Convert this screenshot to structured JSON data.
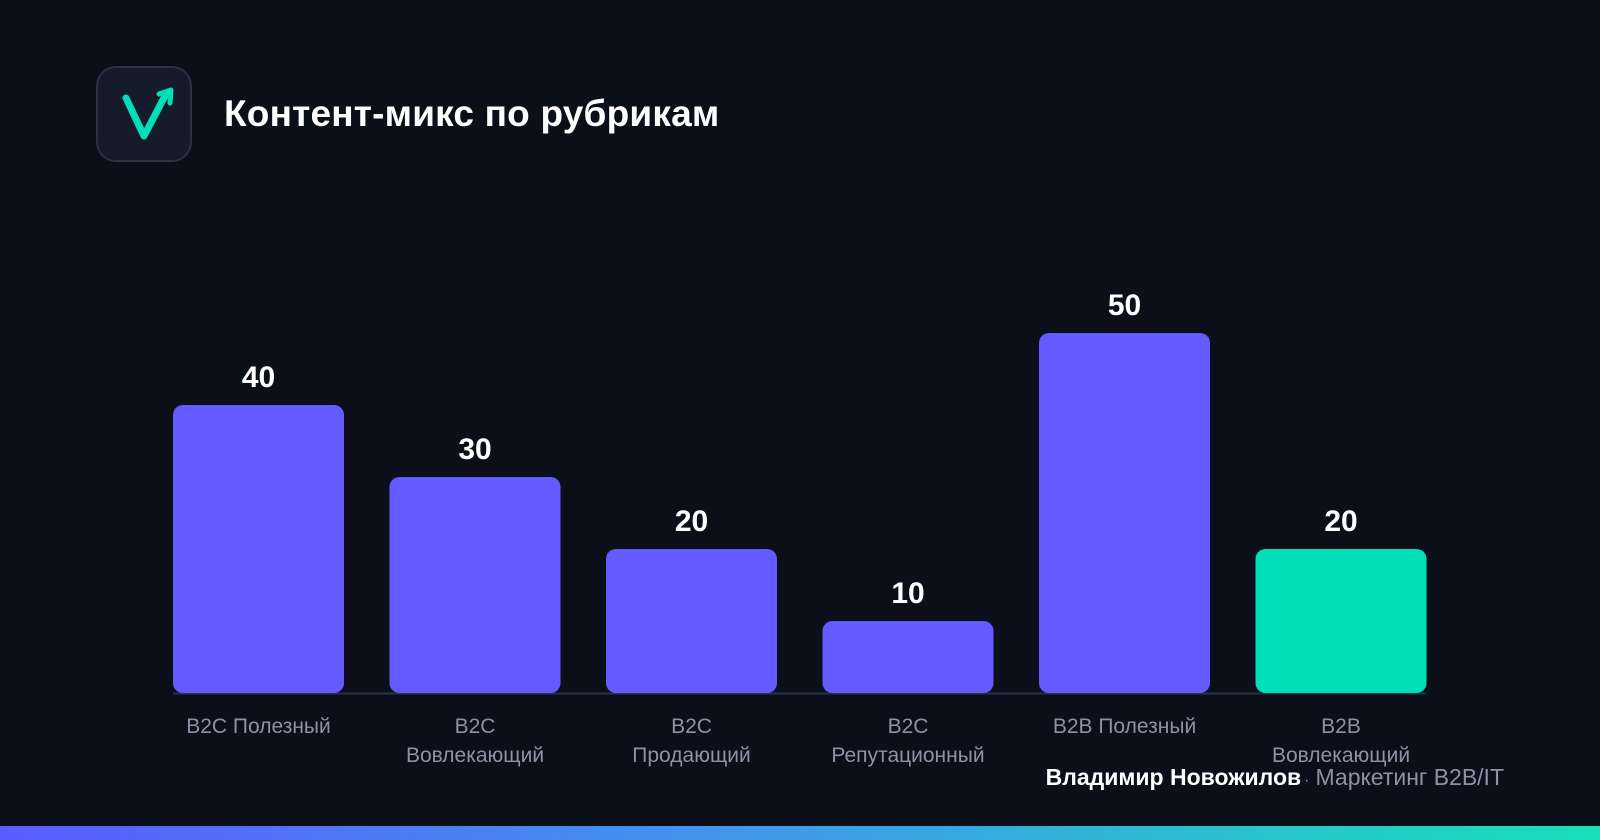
{
  "header": {
    "title": "Контент-микс по рубрикам",
    "logo_icon": "check-arrow-icon"
  },
  "colors": {
    "background": "#0b0f1a",
    "bar_primary": "#635bff",
    "bar_accent": "#00e0b8",
    "label_gray": "#8c93a6"
  },
  "chart_data": {
    "type": "bar",
    "title": "Контент-микс по рубрикам",
    "xlabel": "",
    "ylabel": "",
    "grid": false,
    "categories": [
      [
        "B2C Полезный"
      ],
      [
        "B2C",
        "Вовлекающий"
      ],
      [
        "B2C",
        "Продающий"
      ],
      [
        "B2C",
        "Репутационный"
      ],
      [
        "B2B Полезный"
      ],
      [
        "B2B",
        "Вовлекающий"
      ]
    ],
    "values": [
      40,
      30,
      20,
      10,
      50,
      20
    ],
    "value_labels": [
      "40",
      "30",
      "20",
      "10",
      "50",
      "20"
    ],
    "highlighted_index": 5
  },
  "footer": {
    "author": "Владимир Новожилов",
    "separator": "·",
    "tagline": "Маркетинг B2B/IT"
  }
}
